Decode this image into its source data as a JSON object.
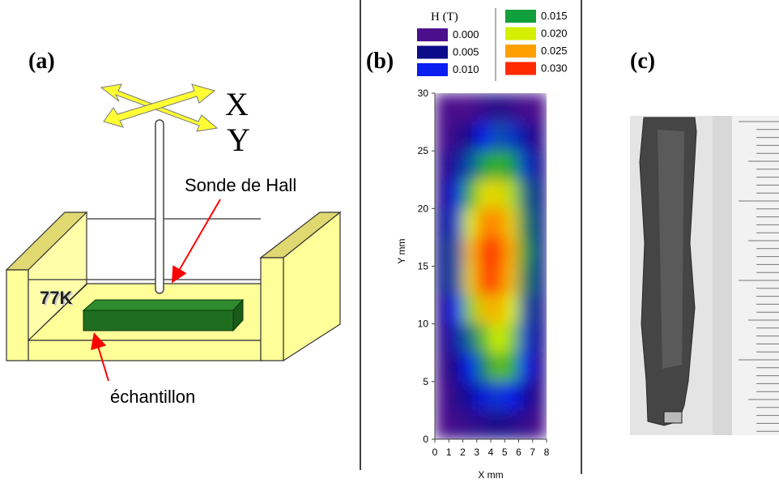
{
  "panel_a": {
    "label": "(a)",
    "axis_x": "X",
    "axis_y": "Y",
    "probe_label": "Sonde de Hall",
    "temperature": "77K",
    "sample_label": "échantillon"
  },
  "chart_data": {
    "type": "heatmap",
    "panel_label": "(b)",
    "legend_title": "H (T)",
    "levels": [
      {
        "value": 0,
        "label": "0.000"
      },
      0.005,
      {
        "value": 0.01,
        "label": "0.010"
      },
      0.015,
      {
        "value": 0.02,
        "label": "0.020"
      },
      0.025,
      {
        "value": 0.03,
        "label": "0.030"
      }
    ],
    "colors": [
      "#4b0f8c",
      "#0c0c8a",
      "#0a1ef0",
      "#12a03c",
      "#d4f000",
      "#ffa000",
      "#ff2a00"
    ],
    "xlabel": "X mm",
    "ylabel": "Y mm",
    "xlim": [
      0,
      8
    ],
    "xticks": [
      0,
      1,
      2,
      3,
      4,
      5,
      6,
      7,
      8
    ],
    "ylim": [
      0,
      30
    ],
    "yticks": [
      0,
      5,
      10,
      15,
      20,
      25,
      30
    ],
    "x": [
      0.5,
      1.5,
      2.5,
      3.5,
      4.5,
      5.5,
      6.5,
      7.5
    ],
    "y": [
      28.75,
      26.25,
      23.75,
      21.25,
      18.75,
      16.25,
      13.75,
      11.25,
      8.75,
      6.25,
      3.75,
      1.25
    ],
    "values": [
      [
        0,
        0,
        0,
        0.002,
        0.003,
        0.002,
        0,
        0
      ],
      [
        0,
        0.002,
        0.005,
        0.01,
        0.012,
        0.011,
        0.006,
        0.002
      ],
      [
        0.002,
        0.006,
        0.012,
        0.015,
        0.016,
        0.015,
        0.011,
        0.004
      ],
      [
        0.003,
        0.009,
        0.016,
        0.021,
        0.022,
        0.019,
        0.013,
        0.005
      ],
      [
        0.004,
        0.011,
        0.02,
        0.026,
        0.026,
        0.022,
        0.014,
        0.005
      ],
      [
        0.004,
        0.012,
        0.023,
        0.029,
        0.029,
        0.024,
        0.015,
        0.005
      ],
      [
        0.004,
        0.012,
        0.022,
        0.029,
        0.028,
        0.023,
        0.014,
        0.005
      ],
      [
        0.003,
        0.01,
        0.018,
        0.023,
        0.024,
        0.02,
        0.012,
        0.004
      ],
      [
        0.002,
        0.007,
        0.013,
        0.017,
        0.02,
        0.018,
        0.011,
        0.004
      ],
      [
        0.001,
        0.005,
        0.01,
        0.014,
        0.017,
        0.016,
        0.01,
        0.003
      ],
      [
        0,
        0.003,
        0.006,
        0.009,
        0.011,
        0.01,
        0.006,
        0.002
      ],
      [
        0,
        0.001,
        0.002,
        0.003,
        0.004,
        0.003,
        0.002,
        0
      ]
    ]
  },
  "panel_c": {
    "label": "(c)"
  }
}
